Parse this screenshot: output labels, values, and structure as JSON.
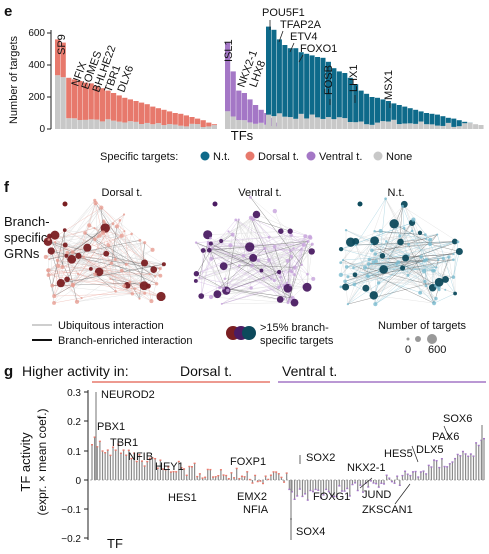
{
  "panels": {
    "e": "e",
    "f": "f",
    "g": "g"
  },
  "panel_e": {
    "y_ticks": [
      "0",
      "200",
      "400",
      "600"
    ],
    "ylabel": "Number of targets",
    "xlabel": "TFs",
    "legend_title": "Specific targets:",
    "legend_items": [
      {
        "label": "N.t.",
        "color": "#0e6a8a"
      },
      {
        "label": "Dorsal t.",
        "color": "#e7796c"
      },
      {
        "label": "Ventral t.",
        "color": "#a477c6"
      },
      {
        "label": "None",
        "color": "#c8c8c8"
      }
    ],
    "tf_labels": [
      "SP9",
      "NFIX",
      "EOMES",
      "BHLHE22",
      "TBR1",
      "DLX6",
      "ISL1",
      "NKX2-1",
      "LHX8",
      "POU5F1",
      "TFAP2A",
      "ETV4",
      "FOXO1",
      "FOSB",
      "LHX1",
      "MSX1"
    ]
  },
  "panel_f": {
    "side_title": [
      "Branch-",
      "specific",
      "GRNs"
    ],
    "networks": [
      {
        "title": "Dorsal t.",
        "node_color": "#7a1f22",
        "edge_color": "#e79d92"
      },
      {
        "title": "Ventral t.",
        "node_color": "#4b1c63",
        "edge_color": "#c7a3dc"
      },
      {
        "title": "N.t.",
        "node_color": "#0d4a5c",
        "edge_color": "#7bbcd0"
      }
    ],
    "legend": {
      "ubiquitous": "Ubiquitous interaction",
      "enriched": "Branch-enriched interaction",
      "targets_line1": ">15% branch-",
      "targets_line2": "specific targets",
      "size_title": "Number of targets",
      "size_min": "0",
      "size_max": "600"
    }
  },
  "panel_g": {
    "header": "Higher activity in:",
    "dorsal": "Dorsal t.",
    "ventral": "Ventral t.",
    "dorsal_color": "#e7796c",
    "ventral_color": "#a477c6",
    "ylabel_line1": "TF activity",
    "ylabel_line2": "(expr. × mean coef.)",
    "xlabel": "TF",
    "y_ticks": [
      "0.3",
      "0.2",
      "0.1",
      "0",
      "−0.1",
      "−0.2"
    ],
    "tf_labels": [
      "NEUROD2",
      "PBX1",
      "TBR1",
      "NFIB",
      "HEY1",
      "HES1",
      "FOXP1",
      "EMX2",
      "NFIA",
      "SOX2",
      "FOXG1",
      "SOX4",
      "HES5",
      "NKX2-1",
      "JUND",
      "ZKSCAN1",
      "SOX6",
      "PAX6",
      "DLX5"
    ]
  }
}
